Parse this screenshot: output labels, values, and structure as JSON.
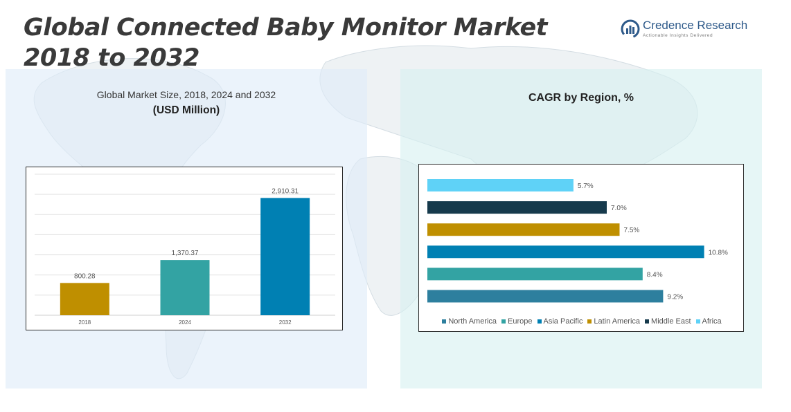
{
  "header": {
    "title_line1": "Global Connected Baby Monitor Market",
    "title_line2": "2018 to 2032"
  },
  "logo": {
    "name": "Credence Research",
    "tagline": "Actionable Insights Delivered"
  },
  "left_panel": {
    "title": "Global Market Size, 2018, 2024 and 2032",
    "subtitle": "(USD Million)"
  },
  "right_panel": {
    "title": "CAGR by Region, %"
  },
  "colors": {
    "gold": "#bf8f00",
    "teal": "#33a3a3",
    "blue": "#0080b3",
    "dark_teal": "#163a4c",
    "light_blue": "#5fd2f7",
    "steel_blue": "#2d7f9e"
  },
  "chart_data": [
    {
      "type": "bar",
      "categories": [
        "2018",
        "2024",
        "2032"
      ],
      "values": [
        800.28,
        1370.37,
        2910.31
      ],
      "value_labels": [
        "800.28",
        "1,370.37",
        "2,910.31"
      ],
      "colors": [
        "#bf8f00",
        "#33a3a3",
        "#0080b3"
      ],
      "title": "",
      "xlabel": "",
      "ylabel": "",
      "ylim": [
        0,
        3500
      ],
      "grid": true
    },
    {
      "type": "bar",
      "orientation": "horizontal",
      "categories": [
        "Africa",
        "Middle East",
        "Latin America",
        "Asia Pacific",
        "Europe",
        "North America"
      ],
      "values": [
        5.7,
        7.0,
        7.5,
        10.8,
        8.4,
        9.2
      ],
      "value_labels": [
        "5.7%",
        "7.0%",
        "7.5%",
        "10.8%",
        "8.4%",
        "9.2%"
      ],
      "colors": [
        "#5fd2f7",
        "#163a4c",
        "#bf8f00",
        "#0080b3",
        "#33a3a3",
        "#2d7f9e"
      ],
      "xlim": [
        0,
        12
      ],
      "grid": false,
      "legend": {
        "position": "bottom",
        "entries": [
          {
            "label": "North America",
            "color": "#2d7f9e"
          },
          {
            "label": "Europe",
            "color": "#33a3a3"
          },
          {
            "label": "Asia Pacific",
            "color": "#0080b3"
          },
          {
            "label": "Latin America",
            "color": "#bf8f00"
          },
          {
            "label": "Middle East",
            "color": "#163a4c"
          },
          {
            "label": "Africa",
            "color": "#5fd2f7"
          }
        ]
      }
    }
  ]
}
